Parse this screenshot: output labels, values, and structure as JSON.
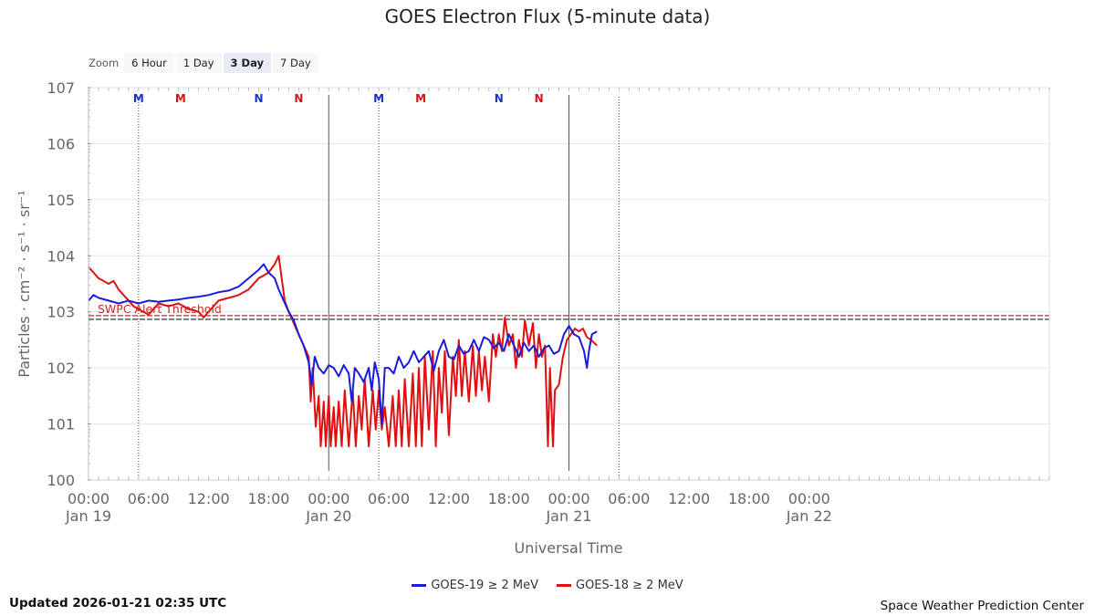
{
  "zoom": {
    "label": "Zoom",
    "buttons": [
      {
        "label": "6 Hour",
        "active": false
      },
      {
        "label": "1 Day",
        "active": false
      },
      {
        "label": "3 Day",
        "active": true
      },
      {
        "label": "7 Day",
        "active": false
      }
    ]
  },
  "footer": {
    "updated": "Updated 2026-01-21 02:35 UTC",
    "credit": "Space Weather Prediction Center"
  },
  "chart_data": {
    "type": "line",
    "title": "GOES Electron Flux (5-minute data)",
    "xlabel": "Universal Time",
    "ylabel": "Particles · cm⁻² · s⁻¹ · sr⁻¹",
    "y_scale": "log",
    "ylim": [
      0,
      7
    ],
    "xlim_hours": [
      0,
      96
    ],
    "x_ticks": [
      {
        "h": 0,
        "time": "00:00",
        "date": "Jan 19"
      },
      {
        "h": 6,
        "time": "06:00",
        "date": ""
      },
      {
        "h": 12,
        "time": "12:00",
        "date": ""
      },
      {
        "h": 18,
        "time": "18:00",
        "date": ""
      },
      {
        "h": 24,
        "time": "00:00",
        "date": "Jan 20"
      },
      {
        "h": 30,
        "time": "06:00",
        "date": ""
      },
      {
        "h": 36,
        "time": "12:00",
        "date": ""
      },
      {
        "h": 42,
        "time": "18:00",
        "date": ""
      },
      {
        "h": 48,
        "time": "00:00",
        "date": "Jan 21"
      },
      {
        "h": 54,
        "time": "06:00",
        "date": ""
      },
      {
        "h": 60,
        "time": "12:00",
        "date": ""
      },
      {
        "h": 66,
        "time": "18:00",
        "date": ""
      },
      {
        "h": 72,
        "time": "00:00",
        "date": "Jan 22"
      }
    ],
    "y_ticks": [
      {
        "exp": 0,
        "label": "100"
      },
      {
        "exp": 1,
        "label": "101"
      },
      {
        "exp": 2,
        "label": "102"
      },
      {
        "exp": 3,
        "label": "103"
      },
      {
        "exp": 4,
        "label": "104"
      },
      {
        "exp": 5,
        "label": "105"
      },
      {
        "exp": 6,
        "label": "106"
      },
      {
        "exp": 7,
        "label": "107"
      }
    ],
    "threshold": {
      "label": "SWPC Alert Threshold",
      "exp": 2.9,
      "color": "#c62828"
    },
    "day_lines_h": [
      24,
      48
    ],
    "dotted_lines_h": [
      5,
      29,
      53
    ],
    "markers": [
      {
        "h": 5,
        "text": "M",
        "color": "#1a33cc"
      },
      {
        "h": 9.2,
        "text": "M",
        "color": "#e01010"
      },
      {
        "h": 17,
        "text": "N",
        "color": "#1a33cc"
      },
      {
        "h": 21,
        "text": "N",
        "color": "#e01010"
      },
      {
        "h": 29,
        "text": "M",
        "color": "#1a33cc"
      },
      {
        "h": 33.2,
        "text": "M",
        "color": "#e01010"
      },
      {
        "h": 41,
        "text": "N",
        "color": "#1a33cc"
      },
      {
        "h": 45,
        "text": "N",
        "color": "#e01010"
      }
    ],
    "series": [
      {
        "name": "GOES-19 ≥ 2 MeV",
        "color": "#1a1adc",
        "points": [
          [
            0,
            3.2
          ],
          [
            0.5,
            3.3
          ],
          [
            1,
            3.25
          ],
          [
            2,
            3.2
          ],
          [
            3,
            3.15
          ],
          [
            4,
            3.2
          ],
          [
            5,
            3.15
          ],
          [
            6,
            3.2
          ],
          [
            7,
            3.18
          ],
          [
            8,
            3.2
          ],
          [
            9,
            3.22
          ],
          [
            10,
            3.25
          ],
          [
            11,
            3.27
          ],
          [
            12,
            3.3
          ],
          [
            13,
            3.35
          ],
          [
            14,
            3.38
          ],
          [
            15,
            3.45
          ],
          [
            16,
            3.6
          ],
          [
            17,
            3.75
          ],
          [
            17.5,
            3.85
          ],
          [
            18,
            3.7
          ],
          [
            18.6,
            3.6
          ],
          [
            19,
            3.4
          ],
          [
            19.5,
            3.2
          ],
          [
            20,
            3.0
          ],
          [
            20.5,
            2.85
          ],
          [
            21,
            2.6
          ],
          [
            21.5,
            2.4
          ],
          [
            22,
            2.1
          ],
          [
            22.3,
            1.7
          ],
          [
            22.6,
            2.2
          ],
          [
            23,
            2.0
          ],
          [
            23.5,
            1.9
          ],
          [
            24,
            2.05
          ],
          [
            24.5,
            2.0
          ],
          [
            25,
            1.85
          ],
          [
            25.5,
            2.05
          ],
          [
            26,
            1.9
          ],
          [
            26.3,
            1.4
          ],
          [
            26.6,
            2.0
          ],
          [
            27,
            1.9
          ],
          [
            27.5,
            1.75
          ],
          [
            28,
            2.0
          ],
          [
            28.3,
            1.6
          ],
          [
            28.6,
            2.1
          ],
          [
            29,
            1.8
          ],
          [
            29.3,
            1.0
          ],
          [
            29.6,
            2.0
          ],
          [
            30,
            2.0
          ],
          [
            30.5,
            1.9
          ],
          [
            31,
            2.2
          ],
          [
            31.5,
            2.0
          ],
          [
            32,
            2.1
          ],
          [
            32.5,
            2.3
          ],
          [
            33,
            2.1
          ],
          [
            33.5,
            2.2
          ],
          [
            34,
            2.3
          ],
          [
            34.5,
            1.95
          ],
          [
            35,
            2.3
          ],
          [
            35.5,
            2.5
          ],
          [
            36,
            2.2
          ],
          [
            36.5,
            2.15
          ],
          [
            37,
            2.4
          ],
          [
            37.5,
            2.25
          ],
          [
            38,
            2.3
          ],
          [
            38.5,
            2.5
          ],
          [
            39,
            2.3
          ],
          [
            39.5,
            2.55
          ],
          [
            40,
            2.5
          ],
          [
            40.5,
            2.35
          ],
          [
            41,
            2.45
          ],
          [
            41.5,
            2.3
          ],
          [
            42,
            2.6
          ],
          [
            42.5,
            2.4
          ],
          [
            43,
            2.2
          ],
          [
            43.5,
            2.45
          ],
          [
            44,
            2.3
          ],
          [
            44.5,
            2.4
          ],
          [
            45,
            2.2
          ],
          [
            45.5,
            2.35
          ],
          [
            46,
            2.4
          ],
          [
            46.5,
            2.25
          ],
          [
            47,
            2.3
          ],
          [
            47.5,
            2.6
          ],
          [
            48,
            2.75
          ],
          [
            48.5,
            2.6
          ],
          [
            49,
            2.55
          ],
          [
            49.5,
            2.3
          ],
          [
            49.8,
            2.0
          ],
          [
            50,
            2.3
          ],
          [
            50.3,
            2.6
          ],
          [
            50.8,
            2.65
          ]
        ]
      },
      {
        "name": "GOES-18 ≥ 2 MeV",
        "color": "#e01010",
        "points": [
          [
            0,
            3.8
          ],
          [
            0.5,
            3.7
          ],
          [
            1,
            3.6
          ],
          [
            1.5,
            3.55
          ],
          [
            2,
            3.5
          ],
          [
            2.5,
            3.55
          ],
          [
            3,
            3.4
          ],
          [
            3.5,
            3.3
          ],
          [
            4,
            3.2
          ],
          [
            4.5,
            3.1
          ],
          [
            5,
            3.05
          ],
          [
            5.5,
            3.0
          ],
          [
            6,
            2.95
          ],
          [
            6.5,
            3.05
          ],
          [
            7,
            3.15
          ],
          [
            8,
            3.1
          ],
          [
            9,
            3.15
          ],
          [
            10,
            3.05
          ],
          [
            11,
            3.0
          ],
          [
            11.5,
            2.9
          ],
          [
            12,
            3.0
          ],
          [
            12.5,
            3.1
          ],
          [
            13,
            3.2
          ],
          [
            14,
            3.25
          ],
          [
            15,
            3.3
          ],
          [
            16,
            3.4
          ],
          [
            17,
            3.6
          ],
          [
            18,
            3.7
          ],
          [
            18.6,
            3.85
          ],
          [
            19,
            4.0
          ],
          [
            19.3,
            3.6
          ],
          [
            19.6,
            3.2
          ],
          [
            20,
            3.0
          ],
          [
            20.5,
            2.8
          ],
          [
            21,
            2.6
          ],
          [
            21.5,
            2.4
          ],
          [
            22,
            2.2
          ],
          [
            22.2,
            1.4
          ],
          [
            22.4,
            2.0
          ],
          [
            22.7,
            0.95
          ],
          [
            23,
            1.5
          ],
          [
            23.2,
            0.6
          ],
          [
            23.5,
            1.4
          ],
          [
            23.7,
            0.6
          ],
          [
            24,
            1.5
          ],
          [
            24.2,
            0.6
          ],
          [
            24.5,
            1.3
          ],
          [
            24.7,
            0.6
          ],
          [
            25,
            1.4
          ],
          [
            25.3,
            0.6
          ],
          [
            25.6,
            1.6
          ],
          [
            26,
            0.6
          ],
          [
            26.4,
            1.6
          ],
          [
            26.7,
            0.6
          ],
          [
            27,
            1.5
          ],
          [
            27.3,
            0.9
          ],
          [
            27.6,
            1.8
          ],
          [
            28,
            0.6
          ],
          [
            28.4,
            1.6
          ],
          [
            28.7,
            0.9
          ],
          [
            29,
            1.6
          ],
          [
            29.3,
            0.9
          ],
          [
            29.6,
            1.3
          ],
          [
            30,
            0.6
          ],
          [
            30.4,
            1.5
          ],
          [
            30.7,
            0.6
          ],
          [
            31,
            1.6
          ],
          [
            31.3,
            0.6
          ],
          [
            31.6,
            1.8
          ],
          [
            32,
            0.6
          ],
          [
            32.4,
            1.9
          ],
          [
            32.7,
            0.6
          ],
          [
            33,
            2.0
          ],
          [
            33.3,
            0.6
          ],
          [
            33.6,
            2.2
          ],
          [
            34,
            0.9
          ],
          [
            34.4,
            2.3
          ],
          [
            34.7,
            0.6
          ],
          [
            35,
            2.0
          ],
          [
            35.3,
            1.2
          ],
          [
            35.6,
            2.3
          ],
          [
            36,
            0.8
          ],
          [
            36.4,
            2.2
          ],
          [
            36.7,
            1.5
          ],
          [
            37,
            2.5
          ],
          [
            37.3,
            1.5
          ],
          [
            37.6,
            2.3
          ],
          [
            38,
            1.4
          ],
          [
            38.4,
            2.4
          ],
          [
            38.7,
            1.5
          ],
          [
            39,
            2.3
          ],
          [
            39.3,
            1.6
          ],
          [
            39.6,
            2.2
          ],
          [
            40,
            1.4
          ],
          [
            40.4,
            2.6
          ],
          [
            40.7,
            2.2
          ],
          [
            41,
            2.6
          ],
          [
            41.3,
            2.3
          ],
          [
            41.6,
            2.9
          ],
          [
            42,
            2.4
          ],
          [
            42.4,
            2.6
          ],
          [
            42.7,
            2.0
          ],
          [
            43,
            2.5
          ],
          [
            43.3,
            2.2
          ],
          [
            43.6,
            2.85
          ],
          [
            44,
            2.4
          ],
          [
            44.4,
            2.8
          ],
          [
            44.7,
            2.0
          ],
          [
            45,
            2.6
          ],
          [
            45.3,
            2.2
          ],
          [
            45.6,
            2.4
          ],
          [
            45.9,
            0.6
          ],
          [
            46.1,
            2.0
          ],
          [
            46.4,
            0.6
          ],
          [
            46.6,
            1.6
          ],
          [
            47,
            1.7
          ],
          [
            47.4,
            2.2
          ],
          [
            47.8,
            2.5
          ],
          [
            48.2,
            2.6
          ],
          [
            48.6,
            2.7
          ],
          [
            49,
            2.65
          ],
          [
            49.4,
            2.7
          ],
          [
            49.8,
            2.55
          ],
          [
            50.2,
            2.5
          ],
          [
            50.8,
            2.4
          ]
        ]
      }
    ]
  }
}
